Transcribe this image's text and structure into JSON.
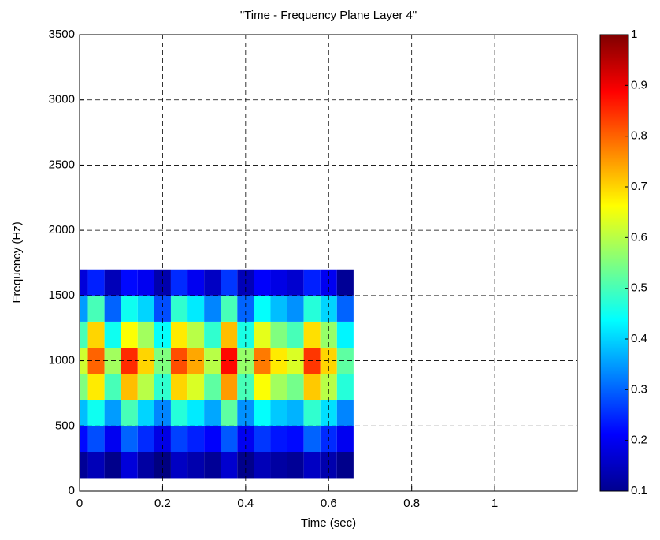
{
  "chart_data": {
    "type": "heatmap",
    "title": "\"Time - Frequency Plane Layer 4\"",
    "x_label": "Time (sec)",
    "y_label": "Frequency (Hz)",
    "x": [
      0,
      0.04,
      0.08,
      0.12,
      0.16,
      0.2,
      0.24,
      0.28,
      0.32,
      0.36,
      0.4,
      0.44,
      0.48,
      0.52,
      0.56,
      0.6,
      0.64
    ],
    "y": [
      0,
      200,
      400,
      600,
      800,
      1000,
      1200,
      1400,
      1600,
      1800
    ],
    "z": [
      [
        0,
        0,
        0,
        0,
        0,
        0,
        0,
        0,
        0,
        0,
        0,
        0,
        0,
        0,
        0,
        0,
        0
      ],
      [
        0.12,
        0.15,
        0.11,
        0.18,
        0.13,
        0.1,
        0.16,
        0.14,
        0.12,
        0.17,
        0.11,
        0.15,
        0.13,
        0.12,
        0.16,
        0.14,
        0.11
      ],
      [
        0.22,
        0.28,
        0.2,
        0.3,
        0.25,
        0.19,
        0.27,
        0.24,
        0.21,
        0.29,
        0.2,
        0.26,
        0.23,
        0.22,
        0.3,
        0.25,
        0.2
      ],
      [
        0.38,
        0.45,
        0.35,
        0.5,
        0.4,
        0.33,
        0.47,
        0.42,
        0.36,
        0.52,
        0.34,
        0.44,
        0.39,
        0.37,
        0.48,
        0.41,
        0.33
      ],
      [
        0.55,
        0.68,
        0.5,
        0.72,
        0.6,
        0.48,
        0.7,
        0.63,
        0.52,
        0.75,
        0.5,
        0.66,
        0.58,
        0.54,
        0.71,
        0.6,
        0.47
      ],
      [
        0.62,
        0.8,
        0.58,
        0.85,
        0.7,
        0.55,
        0.82,
        0.74,
        0.6,
        0.88,
        0.57,
        0.78,
        0.68,
        0.63,
        0.84,
        0.7,
        0.52
      ],
      [
        0.5,
        0.7,
        0.45,
        0.66,
        0.58,
        0.44,
        0.68,
        0.6,
        0.48,
        0.72,
        0.46,
        0.64,
        0.55,
        0.5,
        0.69,
        0.57,
        0.43
      ],
      [
        0.35,
        0.5,
        0.3,
        0.45,
        0.4,
        0.28,
        0.48,
        0.42,
        0.33,
        0.5,
        0.3,
        0.44,
        0.38,
        0.34,
        0.47,
        0.4,
        0.3
      ],
      [
        0.18,
        0.24,
        0.15,
        0.22,
        0.2,
        0.14,
        0.25,
        0.2,
        0.16,
        0.26,
        0.15,
        0.21,
        0.19,
        0.17,
        0.24,
        0.2,
        0.12
      ],
      [
        0,
        0,
        0,
        0,
        0,
        0,
        0,
        0,
        0,
        0,
        0,
        0,
        0,
        0,
        0,
        0,
        0
      ]
    ],
    "xlim": [
      0,
      1.199
    ],
    "xticks": [
      0,
      0.2,
      0.4,
      0.6,
      0.8,
      1
    ],
    "ylim": [
      0,
      3500
    ],
    "yticks": [
      0,
      500,
      1000,
      1500,
      2000,
      2500,
      3000,
      3500
    ],
    "clim": [
      0.1,
      1
    ],
    "cticks": [
      0.1,
      0.2,
      0.3,
      0.4,
      0.5,
      0.6,
      0.7,
      0.8,
      0.9,
      1
    ],
    "colormap": "jet",
    "grid": true
  }
}
